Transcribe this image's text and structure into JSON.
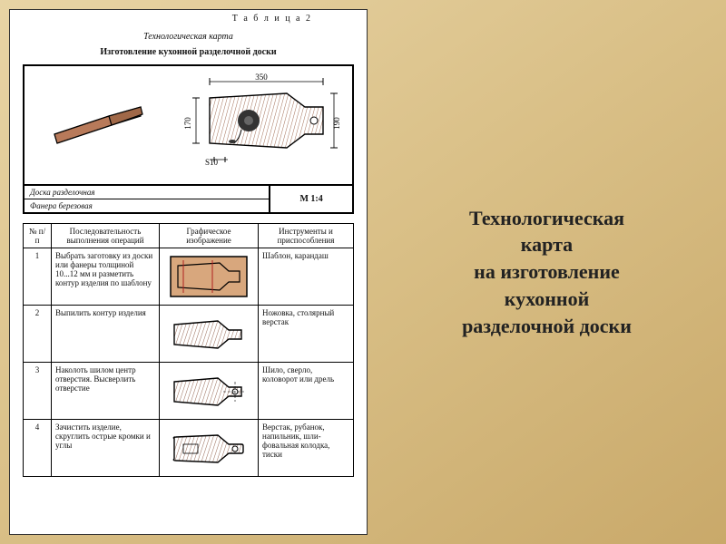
{
  "slide": {
    "background_gradient": [
      "#e8d4a5",
      "#d9bf86",
      "#c9a96a"
    ]
  },
  "right_title": {
    "line1": "Технологическая",
    "line2": "карта",
    "line3": "на изготовление",
    "line4": "кухонной",
    "line5": "разделочной доски",
    "fontsize": 22,
    "color": "#222222"
  },
  "document": {
    "table_label": "Т а б л и ц а 2",
    "title": "Технологическая карта",
    "subtitle": "Изготовление кухонной разделочной доски",
    "drawing": {
      "dimensions": {
        "length": "350",
        "width_top": "170",
        "width_bottom": "190",
        "thickness": "S10"
      },
      "board_fill": "#b87a5a",
      "board_hatch": "#6b3a20",
      "outline": "#000000",
      "decoration": "flower"
    },
    "meta": {
      "name": "Доска разделочная",
      "material": "Фанера березовая",
      "scale": "М 1:4"
    },
    "columns": {
      "num": "№ п/п",
      "op": "Последователь­ность выполнения операций",
      "img": "Графическое изображение",
      "tool": "Инструменты и приспособления"
    },
    "rows": [
      {
        "num": "1",
        "op": "Выбрать заготовку из доски или фа­неры толщиной 10...12 мм и раз­метить контур из­делия по шаблону",
        "tool": "Шаблон, каран­даш",
        "img_kind": "blank-outline"
      },
      {
        "num": "2",
        "op": "Выпилить контур изделия",
        "tool": "Ножовка, столяр­ный верстак",
        "img_kind": "sawn"
      },
      {
        "num": "3",
        "op": "Наколоть шилом центр отверстия. Высверлить отверстие",
        "tool": "Шило, сверло, коловорот или дрель",
        "img_kind": "drilled"
      },
      {
        "num": "4",
        "op": "Зачистить изде­лие, скруглить острые кромки и углы",
        "tool": "Верстак, рубанок, напильник, шли­фовальная колодка, тиски",
        "img_kind": "finished"
      }
    ],
    "styling": {
      "cell_board_fill": "#c4896a",
      "cell_board_stroke": "#000000",
      "cell_hatch": "#7a4028",
      "blank_fill": "#d8a77d",
      "arrow_color": "#b02020"
    }
  }
}
